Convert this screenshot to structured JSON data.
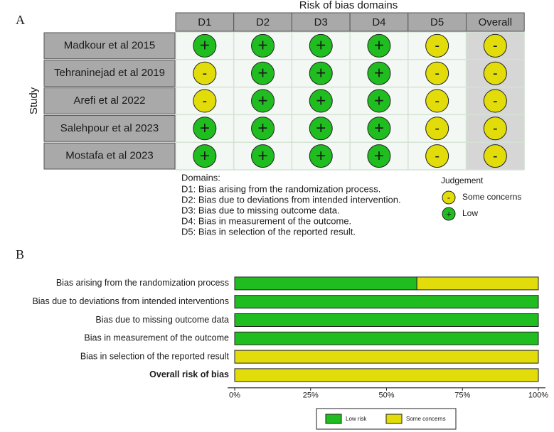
{
  "panel_a": {
    "label": "A",
    "title": "Risk of bias domains",
    "y_label": "Study",
    "columns": [
      "D1",
      "D2",
      "D3",
      "D4",
      "D5",
      "Overall"
    ],
    "studies": [
      "Madkour et al 2015",
      "Tehraninejad et al 2019",
      "Arefi et al 2022",
      "Salehpour et al 2023",
      "Mostafa et al 2023"
    ],
    "judgements": [
      [
        "+",
        "+",
        "+",
        "+",
        "-",
        "-"
      ],
      [
        "-",
        "+",
        "+",
        "+",
        "-",
        "-"
      ],
      [
        "-",
        "+",
        "+",
        "+",
        "-",
        "-"
      ],
      [
        "+",
        "+",
        "+",
        "+",
        "-",
        "-"
      ],
      [
        "+",
        "+",
        "+",
        "+",
        "-",
        "-"
      ]
    ],
    "domains_title": "Domains:",
    "domains": [
      "D1: Bias arising from the randomization process.",
      "D2: Bias due to deviations from intended intervention.",
      "D3: Bias due to missing outcome data.",
      "D4: Bias in measurement of the outcome.",
      "D5: Bias in selection of the reported result."
    ],
    "legend_title": "Judgement",
    "legend": [
      {
        "symbol": "-",
        "label": "Some concerns",
        "color": "#e2dc0a"
      },
      {
        "symbol": "+",
        "label": "Low",
        "color": "#1fbd1f"
      }
    ]
  },
  "chart_data": {
    "type": "stacked-barh",
    "label": "B",
    "categories": [
      "Bias arising from the randomization process",
      "Bias due to deviations from intended interventions",
      "Bias due to missing outcome data",
      "Bias in measurement of the outcome",
      "Bias in selection of the reported result",
      "Overall risk of bias"
    ],
    "series": [
      {
        "name": "Low risk",
        "color": "#1fbd1f",
        "values": [
          60,
          100,
          100,
          100,
          0,
          0
        ]
      },
      {
        "name": "Some concerns",
        "color": "#e2dc0a",
        "values": [
          40,
          0,
          0,
          0,
          100,
          100
        ]
      }
    ],
    "xlim": [
      0,
      100
    ],
    "xticks": [
      {
        "value": 0,
        "label": "0%"
      },
      {
        "value": 25,
        "label": "25%"
      },
      {
        "value": 50,
        "label": "50%"
      },
      {
        "value": 75,
        "label": "75%"
      },
      {
        "value": 100,
        "label": "100%"
      }
    ]
  }
}
